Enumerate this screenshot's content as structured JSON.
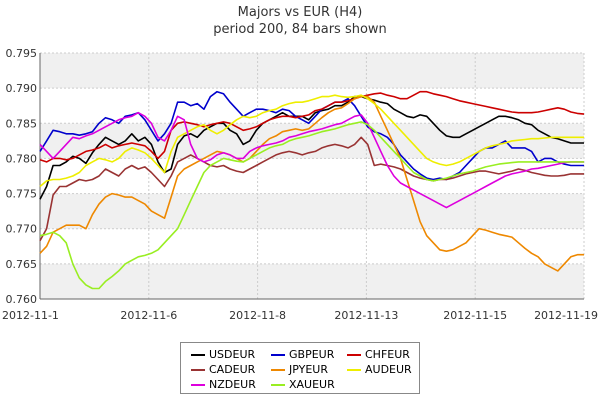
{
  "chart_data": {
    "type": "line",
    "title": "Majors vs EUR (H4)",
    "subtitle": "period 200, 84 bars shown",
    "xlabel": "",
    "ylabel": "",
    "x_tick_labels": [
      "2012-11-1",
      "2012-11-6",
      "2012-11-8",
      "2012-11-13",
      "2012-11-15",
      "2012-11-19"
    ],
    "y_tick_labels": [
      "0.760",
      "0.765",
      "0.770",
      "0.775",
      "0.780",
      "0.785",
      "0.790",
      "0.795"
    ],
    "ylim": [
      0.76,
      0.795
    ],
    "x_bars": 84,
    "grid": true,
    "legend_position": "bottom-center",
    "series": [
      {
        "name": "USDEUR",
        "color": "#000000",
        "values": [
          0.7742,
          0.776,
          0.779,
          0.779,
          0.7795,
          0.7803,
          0.78,
          0.7793,
          0.7808,
          0.782,
          0.783,
          0.7825,
          0.782,
          0.7825,
          0.7835,
          0.7825,
          0.783,
          0.782,
          0.7795,
          0.778,
          0.7785,
          0.782,
          0.7832,
          0.7835,
          0.783,
          0.784,
          0.7845,
          0.785,
          0.785,
          0.784,
          0.7835,
          0.782,
          0.7825,
          0.784,
          0.785,
          0.7855,
          0.786,
          0.7865,
          0.786,
          0.786,
          0.786,
          0.7855,
          0.7865,
          0.7868,
          0.787,
          0.7875,
          0.7875,
          0.788,
          0.7888,
          0.7888,
          0.7885,
          0.7883,
          0.788,
          0.7878,
          0.787,
          0.7865,
          0.786,
          0.7858,
          0.7862,
          0.786,
          0.785,
          0.784,
          0.7832,
          0.783,
          0.783,
          0.7835,
          0.784,
          0.7845,
          0.785,
          0.7855,
          0.786,
          0.786,
          0.7858,
          0.7855,
          0.785,
          0.7848,
          0.784,
          0.7835,
          0.783,
          0.7828,
          0.7825,
          0.7822,
          0.7822,
          0.7822
        ]
      },
      {
        "name": "GBPEUR",
        "color": "#0000cc",
        "values": [
          0.781,
          0.7825,
          0.784,
          0.7838,
          0.7835,
          0.7835,
          0.7833,
          0.7835,
          0.7838,
          0.785,
          0.7858,
          0.7855,
          0.785,
          0.786,
          0.7862,
          0.7865,
          0.7855,
          0.784,
          0.7825,
          0.7835,
          0.785,
          0.788,
          0.788,
          0.7875,
          0.7878,
          0.787,
          0.7888,
          0.7895,
          0.7892,
          0.788,
          0.787,
          0.786,
          0.7865,
          0.787,
          0.787,
          0.7868,
          0.7865,
          0.787,
          0.7868,
          0.786,
          0.7855,
          0.785,
          0.786,
          0.787,
          0.7875,
          0.788,
          0.788,
          0.7885,
          0.7875,
          0.786,
          0.7845,
          0.7838,
          0.7835,
          0.783,
          0.782,
          0.7805,
          0.7795,
          0.7785,
          0.7778,
          0.7772,
          0.777,
          0.7772,
          0.777,
          0.7775,
          0.778,
          0.779,
          0.78,
          0.781,
          0.7815,
          0.7815,
          0.782,
          0.7825,
          0.7815,
          0.7815,
          0.7815,
          0.781,
          0.7795,
          0.78,
          0.78,
          0.7795,
          0.7792,
          0.779,
          0.779,
          0.779
        ]
      },
      {
        "name": "CHFEUR",
        "color": "#cc0000",
        "values": [
          0.7798,
          0.7795,
          0.78,
          0.78,
          0.7798,
          0.78,
          0.7805,
          0.781,
          0.7812,
          0.7815,
          0.782,
          0.7815,
          0.7818,
          0.782,
          0.7822,
          0.782,
          0.7818,
          0.781,
          0.78,
          0.781,
          0.784,
          0.785,
          0.7852,
          0.785,
          0.7848,
          0.7845,
          0.7848,
          0.785,
          0.7852,
          0.785,
          0.7845,
          0.784,
          0.7842,
          0.7845,
          0.785,
          0.7855,
          0.7858,
          0.786,
          0.786,
          0.7858,
          0.786,
          0.7862,
          0.7868,
          0.787,
          0.7875,
          0.788,
          0.788,
          0.7882,
          0.7885,
          0.7888,
          0.789,
          0.7892,
          0.7893,
          0.789,
          0.7888,
          0.7885,
          0.7885,
          0.789,
          0.7895,
          0.7895,
          0.7892,
          0.789,
          0.7888,
          0.7885,
          0.7882,
          0.788,
          0.7878,
          0.7876,
          0.7874,
          0.7872,
          0.787,
          0.7868,
          0.7866,
          0.7865,
          0.7865,
          0.7865,
          0.7866,
          0.7868,
          0.787,
          0.7872,
          0.787,
          0.7866,
          0.7864,
          0.7863
        ]
      },
      {
        "name": "CADEUR",
        "color": "#993333",
        "values": [
          0.7683,
          0.77,
          0.7748,
          0.776,
          0.776,
          0.7765,
          0.777,
          0.7768,
          0.777,
          0.7775,
          0.7785,
          0.778,
          0.7775,
          0.7785,
          0.779,
          0.7785,
          0.7788,
          0.778,
          0.777,
          0.776,
          0.7775,
          0.7795,
          0.78,
          0.7805,
          0.78,
          0.7795,
          0.779,
          0.7788,
          0.779,
          0.7785,
          0.7782,
          0.778,
          0.7785,
          0.779,
          0.7795,
          0.78,
          0.7805,
          0.7808,
          0.781,
          0.7808,
          0.7805,
          0.7808,
          0.781,
          0.7815,
          0.7818,
          0.782,
          0.7818,
          0.7815,
          0.782,
          0.783,
          0.782,
          0.779,
          0.7792,
          0.779,
          0.7788,
          0.7785,
          0.778,
          0.7775,
          0.7772,
          0.777,
          0.7768,
          0.777,
          0.777,
          0.7772,
          0.7775,
          0.7778,
          0.778,
          0.7782,
          0.7782,
          0.778,
          0.7778,
          0.778,
          0.7782,
          0.7785,
          0.7783,
          0.778,
          0.7778,
          0.7776,
          0.7775,
          0.7775,
          0.7776,
          0.7778,
          0.7778,
          0.7778
        ]
      },
      {
        "name": "JPYEUR",
        "color": "#ee8800",
        "values": [
          0.7665,
          0.7675,
          0.7695,
          0.77,
          0.7705,
          0.7705,
          0.7705,
          0.77,
          0.772,
          0.7735,
          0.7745,
          0.775,
          0.7748,
          0.7745,
          0.7745,
          0.774,
          0.7735,
          0.7725,
          0.772,
          0.7715,
          0.7745,
          0.7775,
          0.7785,
          0.779,
          0.7795,
          0.78,
          0.7805,
          0.781,
          0.7808,
          0.7805,
          0.78,
          0.7795,
          0.78,
          0.781,
          0.782,
          0.7828,
          0.7832,
          0.7838,
          0.784,
          0.7842,
          0.784,
          0.7842,
          0.785,
          0.7858,
          0.7865,
          0.787,
          0.7872,
          0.7878,
          0.7885,
          0.7888,
          0.7888,
          0.788,
          0.786,
          0.784,
          0.782,
          0.78,
          0.777,
          0.774,
          0.771,
          0.769,
          0.768,
          0.767,
          0.7668,
          0.767,
          0.7675,
          0.768,
          0.769,
          0.77,
          0.7698,
          0.7695,
          0.7692,
          0.769,
          0.7688,
          0.768,
          0.7672,
          0.7665,
          0.766,
          0.765,
          0.7645,
          0.764,
          0.765,
          0.766,
          0.7663,
          0.7663
        ]
      },
      {
        "name": "AUDEUR",
        "color": "#eeee00",
        "values": [
          0.776,
          0.7768,
          0.777,
          0.777,
          0.7772,
          0.7775,
          0.778,
          0.779,
          0.7795,
          0.78,
          0.7798,
          0.7795,
          0.78,
          0.781,
          0.7815,
          0.7812,
          0.7808,
          0.78,
          0.779,
          0.778,
          0.781,
          0.783,
          0.7835,
          0.784,
          0.7845,
          0.7848,
          0.784,
          0.7835,
          0.784,
          0.7848,
          0.7855,
          0.786,
          0.7858,
          0.786,
          0.7865,
          0.7868,
          0.787,
          0.7875,
          0.7878,
          0.788,
          0.788,
          0.7882,
          0.7885,
          0.7888,
          0.7888,
          0.789,
          0.7888,
          0.7887,
          0.7888,
          0.789,
          0.7885,
          0.7878,
          0.787,
          0.786,
          0.785,
          0.784,
          0.783,
          0.782,
          0.781,
          0.78,
          0.7795,
          0.7792,
          0.779,
          0.7792,
          0.7795,
          0.78,
          0.7805,
          0.781,
          0.7815,
          0.7818,
          0.782,
          0.7822,
          0.7825,
          0.7826,
          0.7827,
          0.7828,
          0.7828,
          0.7829,
          0.783,
          0.783,
          0.783,
          0.783,
          0.783,
          0.783
        ]
      },
      {
        "name": "NZDEUR",
        "color": "#dd00dd",
        "values": [
          0.782,
          0.781,
          0.78,
          0.781,
          0.782,
          0.783,
          0.7828,
          0.7832,
          0.7835,
          0.784,
          0.7845,
          0.785,
          0.7855,
          0.7858,
          0.786,
          0.7865,
          0.786,
          0.785,
          0.783,
          0.7825,
          0.784,
          0.786,
          0.7855,
          0.782,
          0.78,
          0.7795,
          0.7798,
          0.7805,
          0.7808,
          0.7805,
          0.78,
          0.78,
          0.781,
          0.7815,
          0.7818,
          0.782,
          0.7822,
          0.7825,
          0.783,
          0.7832,
          0.7835,
          0.7838,
          0.784,
          0.7842,
          0.7845,
          0.7848,
          0.785,
          0.7855,
          0.786,
          0.7862,
          0.785,
          0.783,
          0.781,
          0.779,
          0.7775,
          0.7765,
          0.776,
          0.7755,
          0.775,
          0.7745,
          0.774,
          0.7735,
          0.773,
          0.7735,
          0.774,
          0.7745,
          0.775,
          0.7755,
          0.776,
          0.7765,
          0.777,
          0.7775,
          0.7778,
          0.778,
          0.7782,
          0.7785,
          0.7786,
          0.7788,
          0.779,
          0.7792,
          0.7794,
          0.7795,
          0.7795,
          0.7795
        ]
      },
      {
        "name": "XAUEUR",
        "color": "#99ee22",
        "values": [
          0.769,
          0.7692,
          0.7695,
          0.769,
          0.768,
          0.765,
          0.763,
          0.762,
          0.7615,
          0.7615,
          0.7625,
          0.7632,
          0.764,
          0.765,
          0.7655,
          0.766,
          0.7662,
          0.7665,
          0.767,
          0.768,
          0.769,
          0.77,
          0.772,
          0.774,
          0.776,
          0.778,
          0.779,
          0.7795,
          0.78,
          0.7798,
          0.7796,
          0.7795,
          0.78,
          0.7805,
          0.781,
          0.7815,
          0.7818,
          0.782,
          0.7825,
          0.7828,
          0.783,
          0.7832,
          0.7835,
          0.7838,
          0.784,
          0.7842,
          0.7845,
          0.7848,
          0.785,
          0.7852,
          0.7848,
          0.784,
          0.783,
          0.782,
          0.781,
          0.78,
          0.779,
          0.778,
          0.7775,
          0.777,
          0.7768,
          0.777,
          0.7772,
          0.7775,
          0.7778,
          0.778,
          0.7782,
          0.7785,
          0.7788,
          0.779,
          0.7792,
          0.7793,
          0.7794,
          0.7795,
          0.7795,
          0.7795,
          0.7795,
          0.7795,
          0.7795,
          0.7795,
          0.7795,
          0.7795,
          0.7795,
          0.7795
        ]
      }
    ]
  }
}
